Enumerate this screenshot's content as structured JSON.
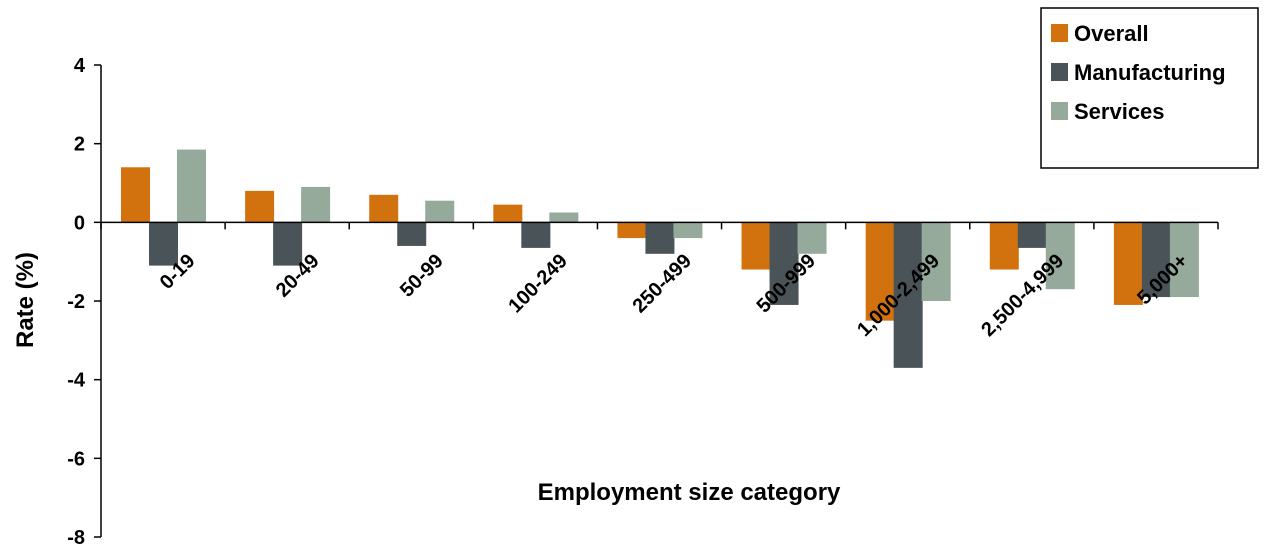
{
  "chart_data": {
    "type": "bar",
    "title": "",
    "xlabel": "Employment size category",
    "ylabel": "Rate (%)",
    "ylim": [
      -8,
      4
    ],
    "yticks": [
      4,
      2,
      0,
      -2,
      -4,
      -6,
      -8
    ],
    "categories": [
      "0-19",
      "20-49",
      "50-99",
      "100-249",
      "250-499",
      "500-999",
      "1,000-2,499",
      "2,500-4,999",
      "5,000+"
    ],
    "series": [
      {
        "name": "Overall",
        "color": "#d2720e",
        "values": [
          1.4,
          0.8,
          0.7,
          0.45,
          -0.4,
          -1.2,
          -2.5,
          -1.2,
          -2.1
        ]
      },
      {
        "name": "Manufacturing",
        "color": "#4a5357",
        "values": [
          -1.1,
          -1.1,
          -0.6,
          -0.65,
          -0.8,
          -2.1,
          -3.7,
          -0.65,
          -1.9
        ]
      },
      {
        "name": "Services",
        "color": "#95aa9b",
        "values": [
          1.85,
          0.9,
          0.55,
          0.25,
          -0.4,
          -0.8,
          -2.0,
          -1.7,
          -1.9
        ]
      }
    ],
    "grid": false,
    "legend_position": "top-right"
  }
}
